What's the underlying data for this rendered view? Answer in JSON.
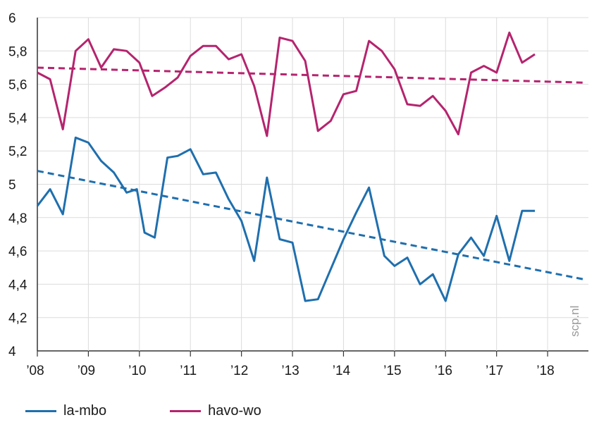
{
  "chart_data": {
    "type": "line",
    "title": "",
    "xlabel": "",
    "ylabel": "",
    "ylim": [
      4,
      6
    ],
    "xlim": [
      2008,
      2018.8
    ],
    "y_ticks": [
      "4",
      "4,2",
      "4,4",
      "4,6",
      "4,8",
      "5",
      "5,2",
      "5,4",
      "5,6",
      "5,8",
      "6"
    ],
    "x_ticks": [
      {
        "value": 2008,
        "label": "’08"
      },
      {
        "value": 2009,
        "label": "’09"
      },
      {
        "value": 2010,
        "label": "’10"
      },
      {
        "value": 2011,
        "label": "’11"
      },
      {
        "value": 2012,
        "label": "’12"
      },
      {
        "value": 2013,
        "label": "’13"
      },
      {
        "value": 2014,
        "label": "’14"
      },
      {
        "value": 2015,
        "label": "’15"
      },
      {
        "value": 2016,
        "label": "’16"
      },
      {
        "value": 2017,
        "label": "’17"
      },
      {
        "value": 2018,
        "label": "’18"
      }
    ],
    "grid": true,
    "legend_position": "bottom-left",
    "series": [
      {
        "name": "la-mbo",
        "color": "#1f6fae",
        "x": [
          2008.0,
          2008.25,
          2008.5,
          2008.75,
          2009.0,
          2009.25,
          2009.5,
          2009.75,
          2009.95,
          2010.1,
          2010.3,
          2010.55,
          2010.75,
          2011.0,
          2011.25,
          2011.5,
          2011.75,
          2012.0,
          2012.25,
          2012.5,
          2012.75,
          2013.0,
          2013.25,
          2013.5,
          2013.75,
          2014.0,
          2014.25,
          2014.5,
          2014.8,
          2015.0,
          2015.25,
          2015.5,
          2015.75,
          2016.0,
          2016.25,
          2016.5,
          2016.75,
          2017.0,
          2017.25,
          2017.5,
          2017.75
        ],
        "values": [
          4.87,
          4.97,
          4.82,
          5.28,
          5.25,
          5.14,
          5.07,
          4.95,
          4.97,
          4.71,
          4.68,
          5.16,
          5.17,
          5.21,
          5.06,
          5.07,
          4.91,
          4.78,
          4.54,
          5.04,
          4.67,
          4.65,
          4.3,
          4.31,
          4.49,
          4.67,
          4.83,
          4.98,
          4.57,
          4.51,
          4.56,
          4.4,
          4.46,
          4.3,
          4.58,
          4.68,
          4.57,
          4.81,
          4.54,
          4.84,
          4.84
        ],
        "trend": {
          "x": [
            2008.0,
            2018.7
          ],
          "y": [
            5.08,
            4.43
          ]
        }
      },
      {
        "name": "havo-wo",
        "color": "#b5246e",
        "x": [
          2008.0,
          2008.25,
          2008.5,
          2008.75,
          2009.0,
          2009.25,
          2009.5,
          2009.75,
          2010.0,
          2010.25,
          2010.5,
          2010.75,
          2011.0,
          2011.25,
          2011.5,
          2011.75,
          2012.0,
          2012.25,
          2012.5,
          2012.75,
          2013.0,
          2013.25,
          2013.5,
          2013.75,
          2014.0,
          2014.25,
          2014.5,
          2014.75,
          2015.0,
          2015.25,
          2015.5,
          2015.75,
          2016.0,
          2016.25,
          2016.5,
          2016.75,
          2017.0,
          2017.25,
          2017.5,
          2017.75
        ],
        "values": [
          5.67,
          5.63,
          5.33,
          5.8,
          5.87,
          5.7,
          5.81,
          5.8,
          5.73,
          5.53,
          5.58,
          5.64,
          5.77,
          5.83,
          5.83,
          5.75,
          5.78,
          5.59,
          5.29,
          5.88,
          5.86,
          5.74,
          5.32,
          5.38,
          5.54,
          5.56,
          5.86,
          5.8,
          5.69,
          5.48,
          5.47,
          5.53,
          5.44,
          5.3,
          5.67,
          5.71,
          5.67,
          5.91,
          5.73,
          5.78
        ],
        "trend": {
          "x": [
            2008.0,
            2018.7
          ],
          "y": [
            5.7,
            5.61
          ]
        }
      }
    ]
  },
  "watermark": "scp.nl"
}
